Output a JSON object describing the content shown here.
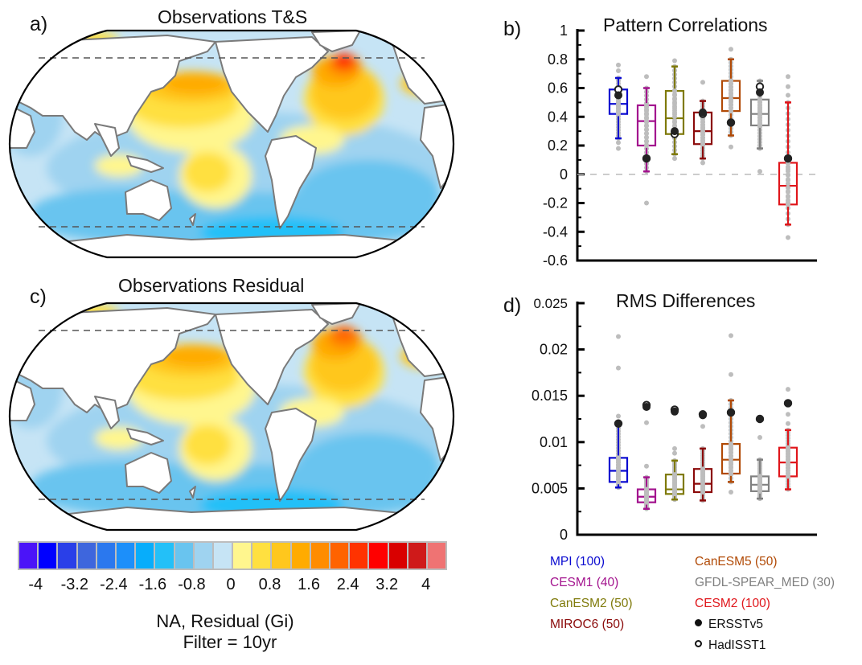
{
  "panels": {
    "a": {
      "label": "a)",
      "title": "Observations T&S"
    },
    "b": {
      "label": "b)",
      "title": "Pattern Correlations"
    },
    "c": {
      "label": "c)",
      "title": "Observations Residual"
    },
    "d": {
      "label": "d)",
      "title": "RMS Differences"
    }
  },
  "colorbar": {
    "colors": [
      "#4b14f8",
      "#0000ff",
      "#2a3fe8",
      "#3e66dd",
      "#2b78ee",
      "#1c8ffa",
      "#07adfb",
      "#23c0f8",
      "#69c4ef",
      "#9fd3f0",
      "#c6e4f5",
      "#fff68e",
      "#ffe040",
      "#ffc71d",
      "#ffab00",
      "#ff8c00",
      "#ff6300",
      "#ff3300",
      "#ff0000",
      "#d90000",
      "#cf1a1a",
      "#ef7373"
    ],
    "ticks": [
      "-4",
      "-3.2",
      "-2.4",
      "-1.6",
      "-0.8",
      "0",
      "0.8",
      "1.6",
      "2.4",
      "3.2",
      "4"
    ],
    "caption_line1": "NA, Residual (Gi)",
    "caption_line2": "Filter = 10yr"
  },
  "legend": {
    "models": [
      {
        "label": "MPI (100)",
        "color": "#0a0ad0"
      },
      {
        "label": "CESM1 (40)",
        "color": "#a3138e"
      },
      {
        "label": "CanESM2 (50)",
        "color": "#7f7a0a"
      },
      {
        "label": "MIROC6 (50)",
        "color": "#8b0a0a"
      },
      {
        "label": "CanESM5 (50)",
        "color": "#b14a06"
      },
      {
        "label": "GFDL-SPEAR_MED (30)",
        "color": "#808080"
      },
      {
        "label": "CESM2 (100)",
        "color": "#e0161b"
      }
    ],
    "obs": [
      {
        "label": "ERSSTv5",
        "marker": "filled-circle"
      },
      {
        "label": "HadISST1",
        "marker": "open-circle"
      }
    ]
  },
  "chart_data": [
    {
      "type": "boxplot",
      "title": "Pattern Correlations",
      "ylim": [
        -0.6,
        1
      ],
      "yticks": [
        "1",
        "0.8",
        "0.6",
        "0.4",
        "0.2",
        "0",
        "-0.2",
        "-0.4",
        "-0.6"
      ],
      "ytick_values": [
        1,
        0.8,
        0.6,
        0.4,
        0.2,
        0,
        -0.2,
        -0.4,
        -0.6
      ],
      "zero_line": true,
      "series": [
        {
          "name": "MPI (100)",
          "q1": 0.42,
          "median": 0.49,
          "q3": 0.59,
          "whisker_low": 0.25,
          "whisker_high": 0.67,
          "members_min": 0.18,
          "members_max": 0.76,
          "ERSSTv5": 0.55,
          "HadISST1": 0.59,
          "outliers": [
            0.18,
            0.22,
            0.72,
            0.76
          ]
        },
        {
          "name": "CESM1 (40)",
          "q1": 0.2,
          "median": 0.37,
          "q3": 0.48,
          "whisker_low": 0.02,
          "whisker_high": 0.6,
          "members_min": 0.02,
          "members_max": 0.6,
          "ERSSTv5": 0.11,
          "HadISST1": 0.11,
          "outliers": [
            -0.2,
            0.68
          ]
        },
        {
          "name": "CanESM2 (50)",
          "q1": 0.28,
          "median": 0.39,
          "q3": 0.58,
          "whisker_low": 0.14,
          "whisker_high": 0.75,
          "members_min": 0.11,
          "members_max": 0.79,
          "ERSSTv5": 0.3,
          "HadISST1": 0.28,
          "outliers": [
            0.11,
            0.79
          ]
        },
        {
          "name": "MIROC6 (50)",
          "q1": 0.21,
          "median": 0.3,
          "q3": 0.43,
          "whisker_low": 0.11,
          "whisker_high": 0.51,
          "members_min": 0.08,
          "members_max": 0.64,
          "ERSSTv5": 0.43,
          "HadISST1": 0.42,
          "outliers": [
            0.08,
            0.64
          ]
        },
        {
          "name": "CanESM5 (50)",
          "q1": 0.44,
          "median": 0.53,
          "q3": 0.65,
          "whisker_low": 0.27,
          "whisker_high": 0.8,
          "members_min": 0.19,
          "members_max": 0.87,
          "ERSSTv5": 0.36,
          "HadISST1": 0.36,
          "outliers": [
            0.19,
            0.87
          ]
        },
        {
          "name": "GFDL-SPEAR_MED (30)",
          "q1": 0.34,
          "median": 0.42,
          "q3": 0.52,
          "whisker_low": 0.18,
          "whisker_high": 0.65,
          "members_min": 0.02,
          "members_max": 0.65,
          "ERSSTv5": 0.57,
          "HadISST1": 0.61,
          "outliers": [
            0.02
          ]
        },
        {
          "name": "CESM2 (100)",
          "q1": -0.21,
          "median": -0.08,
          "q3": 0.08,
          "whisker_low": -0.35,
          "whisker_high": 0.5,
          "members_min": -0.44,
          "members_max": 0.68,
          "ERSSTv5": 0.11,
          "HadISST1": 0.11,
          "outliers": [
            -0.44,
            0.55,
            0.61,
            0.68
          ]
        }
      ]
    },
    {
      "type": "boxplot",
      "title": "RMS Differences",
      "ylim": [
        0,
        0.025
      ],
      "yticks": [
        "0.025",
        "0.02",
        "0.015",
        "0.01",
        "0.005",
        "0"
      ],
      "ytick_values": [
        0.025,
        0.02,
        0.015,
        0.01,
        0.005,
        0
      ],
      "zero_line": false,
      "series": [
        {
          "name": "MPI (100)",
          "q1": 0.0057,
          "median": 0.0069,
          "q3": 0.0083,
          "whisker_low": 0.0051,
          "whisker_high": 0.0118,
          "members_min": 0.0049,
          "members_max": 0.0214,
          "ERSSTv5": 0.012,
          "HadISST1": 0.012,
          "outliers": [
            0.0128,
            0.018,
            0.0214
          ]
        },
        {
          "name": "CESM1 (40)",
          "q1": 0.0035,
          "median": 0.0041,
          "q3": 0.0049,
          "whisker_low": 0.0028,
          "whisker_high": 0.0062,
          "members_min": 0.0028,
          "members_max": 0.0121,
          "ERSSTv5": 0.0138,
          "HadISST1": 0.014,
          "outliers": [
            0.0074,
            0.0121
          ]
        },
        {
          "name": "CanESM2 (50)",
          "q1": 0.0044,
          "median": 0.0049,
          "q3": 0.0065,
          "whisker_low": 0.0038,
          "whisker_high": 0.008,
          "members_min": 0.0036,
          "members_max": 0.0093,
          "ERSSTv5": 0.0133,
          "HadISST1": 0.0135,
          "outliers": [
            0.0088,
            0.0093
          ]
        },
        {
          "name": "MIROC6 (50)",
          "q1": 0.0046,
          "median": 0.0055,
          "q3": 0.0071,
          "whisker_low": 0.0037,
          "whisker_high": 0.0093,
          "members_min": 0.0033,
          "members_max": 0.0117,
          "ERSSTv5": 0.0129,
          "HadISST1": 0.013,
          "outliers": [
            0.0117
          ]
        },
        {
          "name": "CanESM5 (50)",
          "q1": 0.0066,
          "median": 0.0081,
          "q3": 0.0098,
          "whisker_low": 0.0057,
          "whisker_high": 0.0145,
          "members_min": 0.0046,
          "members_max": 0.0215,
          "ERSSTv5": 0.0132,
          "HadISST1": 0.0132,
          "outliers": [
            0.0046,
            0.0173,
            0.0215
          ]
        },
        {
          "name": "GFDL-SPEAR_MED (30)",
          "q1": 0.0047,
          "median": 0.0054,
          "q3": 0.0063,
          "whisker_low": 0.0039,
          "whisker_high": 0.0081,
          "members_min": 0.0039,
          "members_max": 0.0105,
          "ERSSTv5": 0.0125,
          "HadISST1": 0.0125,
          "outliers": [
            0.0105
          ]
        },
        {
          "name": "CESM2 (100)",
          "q1": 0.0063,
          "median": 0.0078,
          "q3": 0.0094,
          "whisker_low": 0.0049,
          "whisker_high": 0.0113,
          "members_min": 0.0044,
          "members_max": 0.0157,
          "ERSSTv5": 0.0142,
          "HadISST1": 0.0142,
          "outliers": [
            0.012,
            0.013,
            0.0157
          ]
        }
      ]
    }
  ]
}
